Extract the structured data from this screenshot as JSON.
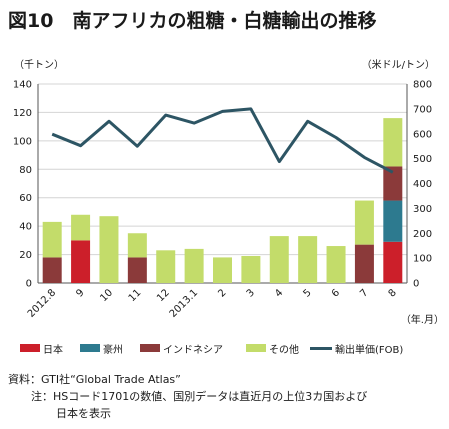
{
  "header": {
    "title": "図10　南アフリカの粗糖・白糖輸出の推移",
    "unit_left": "（千トン）",
    "unit_right": "（米ドル/トン）",
    "xunit": "（年.月）"
  },
  "legend": {
    "japan": "日本",
    "australia": "豪州",
    "indonesia": "インドネシア",
    "other": "その他",
    "price": "輸出単価(FOB)"
  },
  "footer": {
    "source": "資料：GTI社“Global Trade Atlas”",
    "note1": "注：HSコード1701の数値、国別データは直近月の上位3カ国および",
    "note2": "日本を表示"
  },
  "colors": {
    "japan": "#cc1f2a",
    "australia": "#2d7a8f",
    "indonesia": "#8b3a3a",
    "other": "#c3dc6a",
    "price_line": "#2d5564"
  },
  "chart_data": {
    "type": "bar",
    "stacked": true,
    "categories": [
      "2012.8",
      "9",
      "10",
      "11",
      "12",
      "2013.1",
      "2",
      "3",
      "4",
      "5",
      "6",
      "7",
      "8"
    ],
    "series": [
      {
        "name": "日本",
        "values": [
          0,
          30,
          0,
          0,
          0,
          0,
          0,
          0,
          0,
          0,
          0,
          0,
          29
        ]
      },
      {
        "name": "豪州",
        "values": [
          0,
          0,
          0,
          0,
          0,
          0,
          0,
          0,
          0,
          0,
          0,
          0,
          29
        ]
      },
      {
        "name": "インドネシア",
        "values": [
          18,
          0,
          0,
          18,
          0,
          0,
          0,
          0,
          0,
          0,
          0,
          27,
          24
        ]
      },
      {
        "name": "その他",
        "values": [
          25,
          18,
          47,
          17,
          23,
          24,
          18,
          19,
          33,
          33,
          26,
          31,
          34
        ]
      }
    ],
    "line_series": {
      "name": "輸出単価(FOB)",
      "axis": "right",
      "values": [
        598,
        552,
        650,
        550,
        675,
        643,
        690,
        700,
        488,
        650,
        585,
        505,
        445
      ]
    },
    "ylim": [
      0,
      140
    ],
    "yticks": [
      0,
      20,
      40,
      60,
      80,
      100,
      120,
      140
    ],
    "y2lim": [
      0,
      800
    ],
    "y2ticks": [
      0,
      100,
      200,
      300,
      400,
      500,
      600,
      700,
      800
    ],
    "grid": true,
    "legend_position": "bottom"
  }
}
